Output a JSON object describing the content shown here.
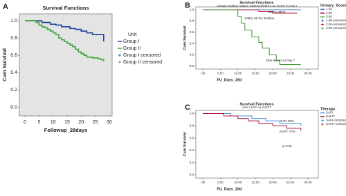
{
  "chart_data": [
    {
      "type": "line",
      "step": true,
      "panel_label": "A",
      "title": "Survival Functions",
      "xlabel": "Followup_28days",
      "ylabel": "Cum Survival",
      "background": "#e4e4e4",
      "xlim": [
        -2,
        31
      ],
      "ylim": [
        -0.1,
        1.08
      ],
      "xticks": [
        0,
        5,
        10,
        15,
        20,
        25,
        30
      ],
      "yticks": [
        {
          "value": 0,
          "label": "0.0"
        },
        {
          "value": 0.2,
          "label": "0.2"
        },
        {
          "value": 0.4,
          "label": "0.4"
        },
        {
          "value": 0.6,
          "label": "0.6"
        },
        {
          "value": 0.8,
          "label": "0.8"
        },
        {
          "value": 1,
          "label": "1.0"
        }
      ],
      "legend_title": "Unit",
      "censored_labels": [
        "Group I censored",
        "Group II censored"
      ],
      "series": [
        {
          "name": "Group I",
          "color": "#1f3d9e",
          "x": [
            0,
            6,
            9,
            11,
            13,
            16,
            18,
            20,
            22,
            24,
            28
          ],
          "values": [
            1,
            0.98,
            0.96,
            0.95,
            0.93,
            0.91,
            0.9,
            0.88,
            0.86,
            0.84,
            0.76
          ]
        },
        {
          "name": "Group II",
          "color": "#3aa83a",
          "x": [
            0,
            4,
            5,
            6,
            7,
            8,
            9,
            10,
            11,
            12,
            13,
            14,
            15,
            16,
            17,
            18,
            19,
            20,
            21,
            22,
            24,
            26,
            27,
            28
          ],
          "values": [
            1,
            0.98,
            0.95,
            0.93,
            0.92,
            0.9,
            0.88,
            0.86,
            0.84,
            0.8,
            0.78,
            0.76,
            0.74,
            0.72,
            0.7,
            0.67,
            0.64,
            0.62,
            0.6,
            0.58,
            0.57,
            0.56,
            0.55,
            0.53
          ]
        }
      ]
    },
    {
      "type": "line",
      "step": true,
      "panel_label": "B",
      "title": "Survival Functions",
      "subtitle": "Urinary Sodium Values >40mmol/24Hrs on SAFIT in Arm I",
      "xlabel": "FU_Days_28d",
      "ylabel": "Cum Survival",
      "background": "#ffffff",
      "xlim": [
        -2,
        33
      ],
      "ylim": [
        -0.05,
        1.05
      ],
      "xticks": [
        {
          "value": 0,
          "label": ".00"
        },
        {
          "value": 5,
          "label": "5.00"
        },
        {
          "value": 10,
          "label": "10.00"
        },
        {
          "value": 15,
          "label": "15.00"
        },
        {
          "value": 20,
          "label": "20.00"
        },
        {
          "value": 25,
          "label": "25.00"
        },
        {
          "value": 30,
          "label": "30.00"
        }
      ],
      "yticks": [
        {
          "value": 0,
          "label": "0.0"
        },
        {
          "value": 0.2,
          "label": "0.2"
        },
        {
          "value": 0.4,
          "label": "0.4"
        },
        {
          "value": 0.6,
          "label": "0.6"
        },
        {
          "value": 0.8,
          "label": "0.8"
        },
        {
          "value": 1,
          "label": "1.0"
        }
      ],
      "legend_title": "Urinary_Score",
      "censored_labels": [
        "1.00-censored",
        "2.00-censored",
        "3.00-censored"
      ],
      "annotations": [
        "Within 48hrs",
        "Within 96 hrs Textbox",
        "After 96 Hrs to Day 7"
      ],
      "series": [
        {
          "name": "1.00",
          "color": "#2b5fb5",
          "x": [
            0,
            28
          ],
          "values": [
            1,
            1
          ]
        },
        {
          "name": "2.00",
          "color": "#c0143c",
          "x": [
            0,
            16,
            20,
            27
          ],
          "values": [
            1,
            0.97,
            0.94,
            0.94
          ]
        },
        {
          "name": "3.00",
          "color": "#3a9a2a",
          "x": [
            0,
            10,
            11,
            12,
            14,
            16,
            17,
            19,
            21,
            22,
            28
          ],
          "values": [
            1,
            0.88,
            0.76,
            0.64,
            0.52,
            0.42,
            0.32,
            0.2,
            0.1,
            0.03,
            0.03
          ]
        }
      ]
    },
    {
      "type": "line",
      "step": true,
      "panel_label": "C",
      "title": "Survival Functions",
      "subtitle": "Arm I SAFI vs SAFIT",
      "xlabel": "FU_Days_28d",
      "ylabel": "Cum Survival",
      "background": "#ffffff",
      "xlim": [
        -2,
        33
      ],
      "ylim": [
        -0.05,
        1.05
      ],
      "xticks": [
        {
          "value": 0,
          "label": ".00"
        },
        {
          "value": 5,
          "label": "5.00"
        },
        {
          "value": 10,
          "label": "10.00"
        },
        {
          "value": 15,
          "label": "15.00"
        },
        {
          "value": 20,
          "label": "20.00"
        },
        {
          "value": 25,
          "label": "25.00"
        },
        {
          "value": 30,
          "label": "30.00"
        }
      ],
      "yticks": [
        {
          "value": 0,
          "label": "0.0"
        },
        {
          "value": 0.2,
          "label": "0.2"
        },
        {
          "value": 0.4,
          "label": "0.4"
        },
        {
          "value": 0.6,
          "label": "0.6"
        },
        {
          "value": 0.8,
          "label": "0.8"
        },
        {
          "value": 1,
          "label": "1.0"
        }
      ],
      "legend_title": "Therapy",
      "censored_labels": [
        "SAFI-censored",
        "SAFIT-censored"
      ],
      "annotations": [
        "SAFI 80%",
        "SAFIT 72%",
        "p=0.32"
      ],
      "series": [
        {
          "name": "SAFI",
          "color": "#4a8fd8",
          "x": [
            0,
            8,
            14,
            18,
            22,
            28
          ],
          "values": [
            1,
            0.96,
            0.92,
            0.88,
            0.84,
            0.8
          ]
        },
        {
          "name": "SAFIT",
          "color": "#b0103a",
          "x": [
            0,
            6,
            10,
            13,
            16,
            20,
            24,
            28
          ],
          "values": [
            1,
            0.96,
            0.92,
            0.88,
            0.84,
            0.8,
            0.76,
            0.72
          ]
        }
      ]
    }
  ]
}
